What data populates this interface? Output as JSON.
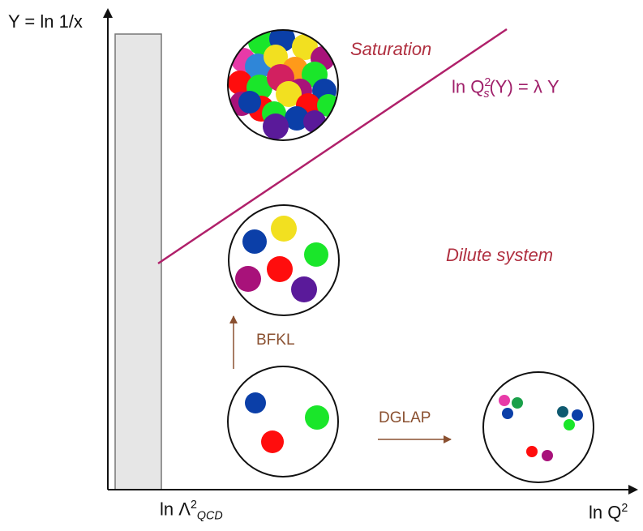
{
  "axes": {
    "y_label": "Y = ln 1/x",
    "x_label_prefix": "ln Q",
    "x_label_sup": "2",
    "lambda_label_prefix": "ln Λ",
    "lambda_label_sup": "2",
    "lambda_label_sub": "QCD"
  },
  "regions": {
    "saturation": "Saturation",
    "dilute": "Dilute system"
  },
  "saturation_line": {
    "prefix": "ln Q",
    "sup": "2",
    "sub": "s",
    "suffix": "(Y) = λ Y"
  },
  "evolutions": {
    "bfkl": "BFKL",
    "dglap": "DGLAP"
  },
  "colors": {
    "axis": "#111111",
    "shaded_band_fill": "#e6e6e6",
    "saturation_line": "#b0206a",
    "region_label": "#b03040",
    "formula_label": "#a0206a",
    "evolution_arrow": "#8a5030",
    "gluon_palette": [
      "#0b3fa8",
      "#1ae62a",
      "#ff0d0d",
      "#f2e020",
      "#a8127a",
      "#5a1a9a",
      "#e83aa8",
      "#1aa04a",
      "#0f5a70",
      "#2f86d8",
      "#ff9a1a",
      "#d22060"
    ]
  }
}
